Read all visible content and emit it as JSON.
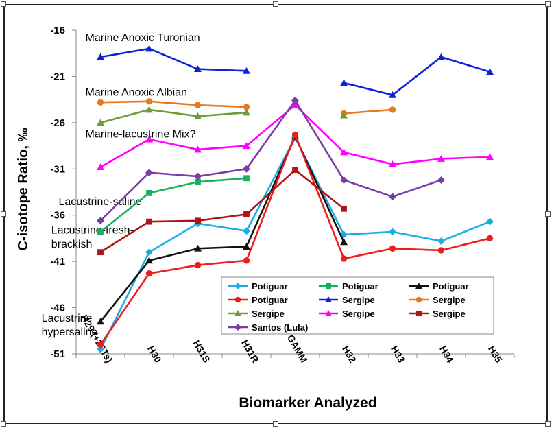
{
  "chart_data": {
    "type": "line",
    "title": "",
    "xlabel": "Biomarker Analyzed",
    "ylabel": "C-isotope Ratio, ‰",
    "categories": [
      "H29 (+29Ts)",
      "H30",
      "H31S",
      "H31R",
      "GAMM",
      "H32",
      "H33",
      "H34",
      "H35"
    ],
    "yticks": [
      -16,
      -21,
      -26,
      -31,
      -36,
      -41,
      -46,
      -51
    ],
    "ylim": [
      -51,
      -16
    ],
    "grid": false,
    "legend_position": "bottom-right",
    "annotations": [
      {
        "text": "Marine Anoxic Turonian",
        "y_level": -17.2,
        "x_index": 0
      },
      {
        "text": "Marine Anoxic Albian",
        "y_level": -23.1,
        "x_index": 0
      },
      {
        "text": "Marine-lacustrine Mix?",
        "y_level": -27.6,
        "x_index": 0
      },
      {
        "text": "Lacustrine-saline",
        "y_level": -34.9,
        "x_index": -0.55
      },
      {
        "text": "Lacustrine-fresh-",
        "y_level": -38.0,
        "x_index": -0.7
      },
      {
        "text": "brackish",
        "y_level": -39.5,
        "x_index": -0.7
      },
      {
        "text": "Lacustrine",
        "y_level": -47.5,
        "x_index": -0.9
      },
      {
        "text": "hypersaline",
        "y_level": -49.0,
        "x_index": -0.9
      }
    ],
    "series": [
      {
        "name": "Potiguar",
        "color": "#1AADE6",
        "marker": "diamond",
        "values": [
          -50.5,
          -40.0,
          -36.9,
          -37.7,
          -27.6,
          -38.1,
          -37.8,
          -38.8,
          -36.7
        ]
      },
      {
        "name": "Potiguar",
        "color": "#18B05A",
        "marker": "square",
        "values": [
          -37.8,
          -33.6,
          -32.4,
          -32.0,
          null,
          null,
          null,
          null,
          null
        ]
      },
      {
        "name": "Potiguar",
        "color": "#111111",
        "marker": "triangle",
        "values": [
          -47.5,
          -40.9,
          -39.6,
          -39.4,
          -27.5,
          -38.9,
          null,
          null,
          null
        ]
      },
      {
        "name": "Potiguar",
        "color": "#EE1C1C",
        "marker": "circle",
        "values": [
          -50.0,
          -42.3,
          -41.4,
          -40.9,
          -27.3,
          -40.7,
          -39.6,
          -39.8,
          -38.5
        ]
      },
      {
        "name": "Sergipe",
        "color": "#0A22D8",
        "marker": "triangle",
        "values": [
          -18.9,
          -18.0,
          -20.2,
          -20.4,
          null,
          -21.7,
          -23.0,
          -18.9,
          -20.5
        ]
      },
      {
        "name": "Sergipe",
        "color": "#E8781E",
        "marker": "circle",
        "values": [
          -23.8,
          -23.7,
          -24.1,
          -24.3,
          null,
          -25.0,
          -24.6,
          null,
          null
        ]
      },
      {
        "name": "Sergipe",
        "color": "#6E9C3A",
        "marker": "triangle",
        "values": [
          -26.0,
          -24.6,
          -25.3,
          -24.9,
          null,
          -25.2,
          null,
          null,
          null
        ]
      },
      {
        "name": "Sergipe",
        "color": "#FF00FF",
        "marker": "triangle",
        "values": [
          -30.8,
          -27.8,
          -28.9,
          -28.5,
          -24.1,
          -29.2,
          -30.5,
          -29.9,
          -29.7
        ]
      },
      {
        "name": "Sergipe",
        "color": "#B01414",
        "marker": "square",
        "values": [
          -40.0,
          -36.7,
          -36.6,
          -35.9,
          -31.1,
          -35.3,
          null,
          null,
          null
        ]
      },
      {
        "name": "Santos (Lula)",
        "color": "#7B3CA8",
        "marker": "diamond",
        "values": [
          -36.6,
          -31.4,
          -31.8,
          -31.0,
          -23.6,
          -32.2,
          -34.0,
          -32.2,
          null
        ]
      }
    ]
  }
}
